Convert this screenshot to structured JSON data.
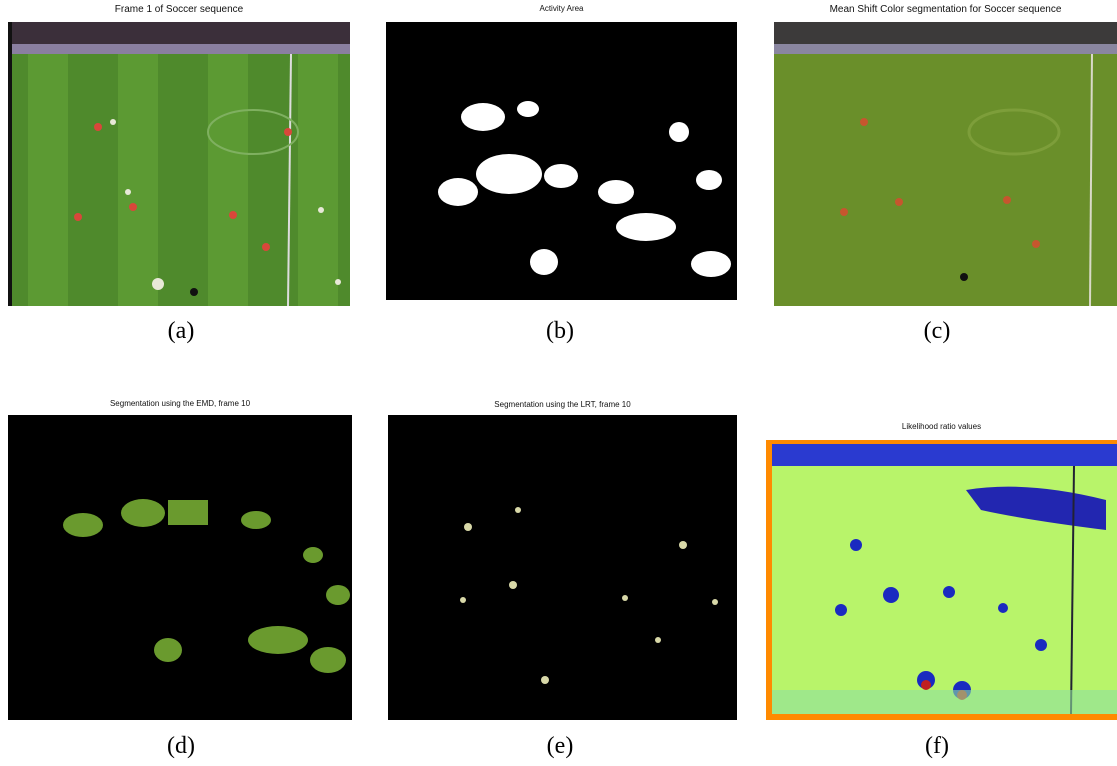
{
  "panels": [
    {
      "title": "Frame 1 of Soccer sequence",
      "caption": "(a)"
    },
    {
      "title": "Activity Area",
      "caption": "(b)"
    },
    {
      "title": "Mean Shift Color segmentation for Soccer sequence",
      "caption": "(c)"
    },
    {
      "title": "Segmentation using the EMD, frame 10",
      "caption": "(d)"
    },
    {
      "title": "Segmentation using the LRT, frame 10",
      "caption": "(e)"
    },
    {
      "title": "Likelihood ratio values",
      "caption": "(f)"
    }
  ]
}
